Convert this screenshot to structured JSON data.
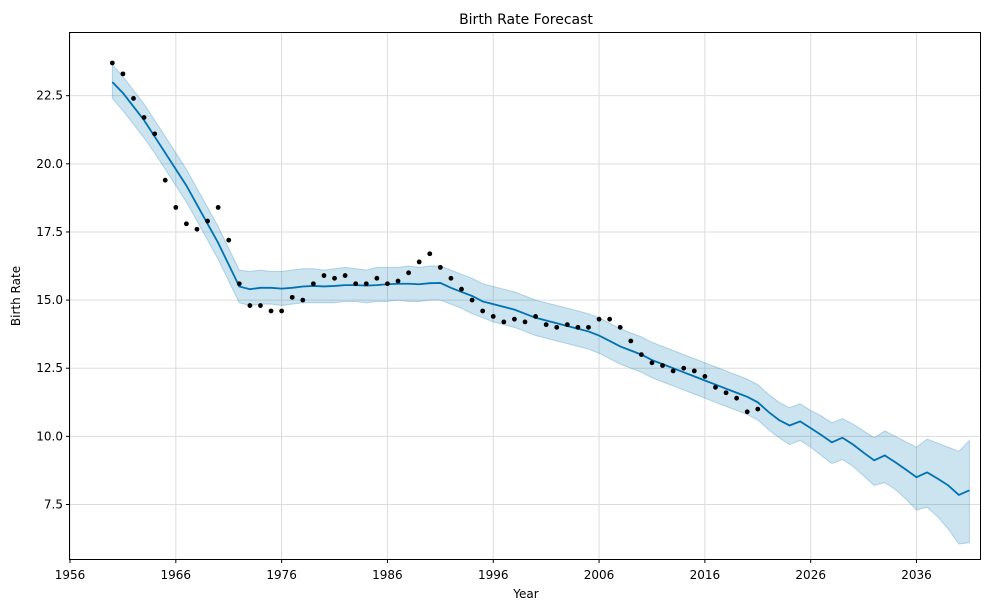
{
  "chart_data": {
    "type": "line",
    "title": "Birth Rate Forecast",
    "xlabel": "Year",
    "ylabel": "Birth Rate",
    "xlim": [
      1956,
      2042
    ],
    "ylim": [
      5.5,
      24.8
    ],
    "xticks": [
      1956,
      1966,
      1976,
      1986,
      1996,
      2006,
      2016,
      2026,
      2036
    ],
    "yticks": [
      7.5,
      10.0,
      12.5,
      15.0,
      17.5,
      20.0,
      22.5
    ],
    "grid": true,
    "colors": {
      "forecast": "#0072B2",
      "interval": "#0072B2",
      "observed": "#000000",
      "grid": "#dddddd"
    },
    "series": [
      {
        "kind": "observed-points",
        "x": [
          1960,
          1961,
          1962,
          1963,
          1964,
          1965,
          1966,
          1967,
          1968,
          1969,
          1970,
          1971,
          1972,
          1973,
          1974,
          1975,
          1976,
          1977,
          1978,
          1979,
          1980,
          1981,
          1982,
          1983,
          1984,
          1985,
          1986,
          1987,
          1988,
          1989,
          1990,
          1991,
          1992,
          1993,
          1994,
          1995,
          1996,
          1997,
          1998,
          1999,
          2000,
          2001,
          2002,
          2003,
          2004,
          2005,
          2006,
          2007,
          2008,
          2009,
          2010,
          2011,
          2012,
          2013,
          2014,
          2015,
          2016,
          2017,
          2018,
          2019,
          2020,
          2021
        ],
        "y": [
          23.7,
          23.3,
          22.4,
          21.7,
          21.1,
          19.4,
          18.4,
          17.8,
          17.6,
          17.9,
          18.4,
          17.2,
          15.6,
          14.8,
          14.8,
          14.6,
          14.6,
          15.1,
          15.0,
          15.6,
          15.9,
          15.8,
          15.9,
          15.6,
          15.6,
          15.8,
          15.6,
          15.7,
          16.0,
          16.4,
          16.7,
          16.2,
          15.8,
          15.4,
          15.0,
          14.6,
          14.4,
          14.2,
          14.3,
          14.2,
          14.4,
          14.1,
          14.0,
          14.1,
          14.0,
          14.0,
          14.3,
          14.3,
          14.0,
          13.5,
          13.0,
          12.7,
          12.6,
          12.4,
          12.5,
          12.4,
          12.2,
          11.8,
          11.6,
          11.4,
          10.9,
          11.0
        ]
      },
      {
        "kind": "forecast-line",
        "x": [
          1960,
          1961,
          1962,
          1963,
          1964,
          1965,
          1966,
          1967,
          1968,
          1969,
          1970,
          1971,
          1972,
          1973,
          1974,
          1975,
          1976,
          1977,
          1978,
          1979,
          1980,
          1981,
          1982,
          1983,
          1984,
          1985,
          1986,
          1987,
          1988,
          1989,
          1990,
          1991,
          1992,
          1993,
          1994,
          1995,
          1996,
          1997,
          1998,
          1999,
          2000,
          2001,
          2002,
          2003,
          2004,
          2005,
          2006,
          2007,
          2008,
          2009,
          2010,
          2011,
          2012,
          2013,
          2014,
          2015,
          2016,
          2017,
          2018,
          2019,
          2020,
          2021,
          2022,
          2023,
          2024,
          2025,
          2026,
          2027,
          2028,
          2029,
          2030,
          2031,
          2032,
          2033,
          2034,
          2035,
          2036,
          2037,
          2038,
          2039,
          2040,
          2041
        ],
        "y": [
          23.0,
          22.6,
          22.1,
          21.6,
          21.0,
          20.4,
          19.8,
          19.2,
          18.5,
          17.8,
          17.1,
          16.3,
          15.5,
          15.4,
          15.45,
          15.45,
          15.42,
          15.45,
          15.5,
          15.52,
          15.5,
          15.52,
          15.55,
          15.55,
          15.53,
          15.55,
          15.58,
          15.6,
          15.6,
          15.58,
          15.62,
          15.63,
          15.45,
          15.3,
          15.15,
          14.95,
          14.85,
          14.75,
          14.65,
          14.5,
          14.35,
          14.25,
          14.15,
          14.05,
          13.95,
          13.85,
          13.7,
          13.5,
          13.3,
          13.15,
          13.0,
          12.8,
          12.65,
          12.5,
          12.35,
          12.2,
          12.05,
          11.9,
          11.75,
          11.6,
          11.45,
          11.25,
          10.9,
          10.6,
          10.4,
          10.55,
          10.3,
          10.05,
          9.78,
          9.95,
          9.7,
          9.4,
          9.12,
          9.3,
          9.05,
          8.78,
          8.5,
          8.68,
          8.45,
          8.2,
          7.85,
          8.02
        ]
      },
      {
        "kind": "uncertainty-interval",
        "x": [
          1960,
          1961,
          1962,
          1963,
          1964,
          1965,
          1966,
          1967,
          1968,
          1969,
          1970,
          1971,
          1972,
          1973,
          1974,
          1975,
          1976,
          1977,
          1978,
          1979,
          1980,
          1981,
          1982,
          1983,
          1984,
          1985,
          1986,
          1987,
          1988,
          1989,
          1990,
          1991,
          1992,
          1993,
          1994,
          1995,
          1996,
          1997,
          1998,
          1999,
          2000,
          2001,
          2002,
          2003,
          2004,
          2005,
          2006,
          2007,
          2008,
          2009,
          2010,
          2011,
          2012,
          2013,
          2014,
          2015,
          2016,
          2017,
          2018,
          2019,
          2020,
          2021,
          2022,
          2023,
          2024,
          2025,
          2026,
          2027,
          2028,
          2029,
          2030,
          2031,
          2032,
          2033,
          2034,
          2035,
          2036,
          2037,
          2038,
          2039,
          2040,
          2041
        ],
        "upper": [
          23.65,
          23.2,
          22.7,
          22.2,
          21.6,
          21.0,
          20.4,
          19.8,
          19.1,
          18.4,
          17.7,
          16.9,
          16.1,
          16.05,
          16.1,
          16.05,
          16.05,
          16.1,
          16.15,
          16.15,
          16.1,
          16.15,
          16.2,
          16.15,
          16.1,
          16.2,
          16.2,
          16.2,
          16.25,
          16.2,
          16.25,
          16.25,
          16.1,
          15.95,
          15.8,
          15.6,
          15.5,
          15.4,
          15.3,
          15.15,
          15.0,
          14.9,
          14.8,
          14.7,
          14.6,
          14.5,
          14.35,
          14.15,
          13.95,
          13.8,
          13.65,
          13.45,
          13.3,
          13.15,
          13.0,
          12.85,
          12.7,
          12.55,
          12.4,
          12.25,
          12.1,
          11.9,
          11.55,
          11.25,
          11.05,
          11.2,
          10.95,
          10.75,
          10.5,
          10.65,
          10.45,
          10.2,
          9.95,
          10.2,
          10.0,
          9.8,
          9.6,
          9.9,
          9.75,
          9.6,
          9.45,
          9.85
        ],
        "lower": [
          22.4,
          21.95,
          21.45,
          20.95,
          20.4,
          19.8,
          19.2,
          18.6,
          17.9,
          17.2,
          16.5,
          15.7,
          14.9,
          14.8,
          14.85,
          14.85,
          14.8,
          14.85,
          14.9,
          14.9,
          14.9,
          14.9,
          14.95,
          14.95,
          14.9,
          14.95,
          14.95,
          15.0,
          14.95,
          14.95,
          15.0,
          15.0,
          14.85,
          14.7,
          14.5,
          14.35,
          14.2,
          14.1,
          14.0,
          13.85,
          13.7,
          13.6,
          13.5,
          13.4,
          13.3,
          13.2,
          13.05,
          12.85,
          12.65,
          12.5,
          12.35,
          12.15,
          12.0,
          11.85,
          11.7,
          11.55,
          11.4,
          11.25,
          11.1,
          10.95,
          10.8,
          10.6,
          10.25,
          9.95,
          9.7,
          9.85,
          9.6,
          9.3,
          9.0,
          9.15,
          8.9,
          8.55,
          8.2,
          8.3,
          8.05,
          7.7,
          7.3,
          7.4,
          7.05,
          6.6,
          6.05,
          6.1
        ]
      }
    ]
  }
}
